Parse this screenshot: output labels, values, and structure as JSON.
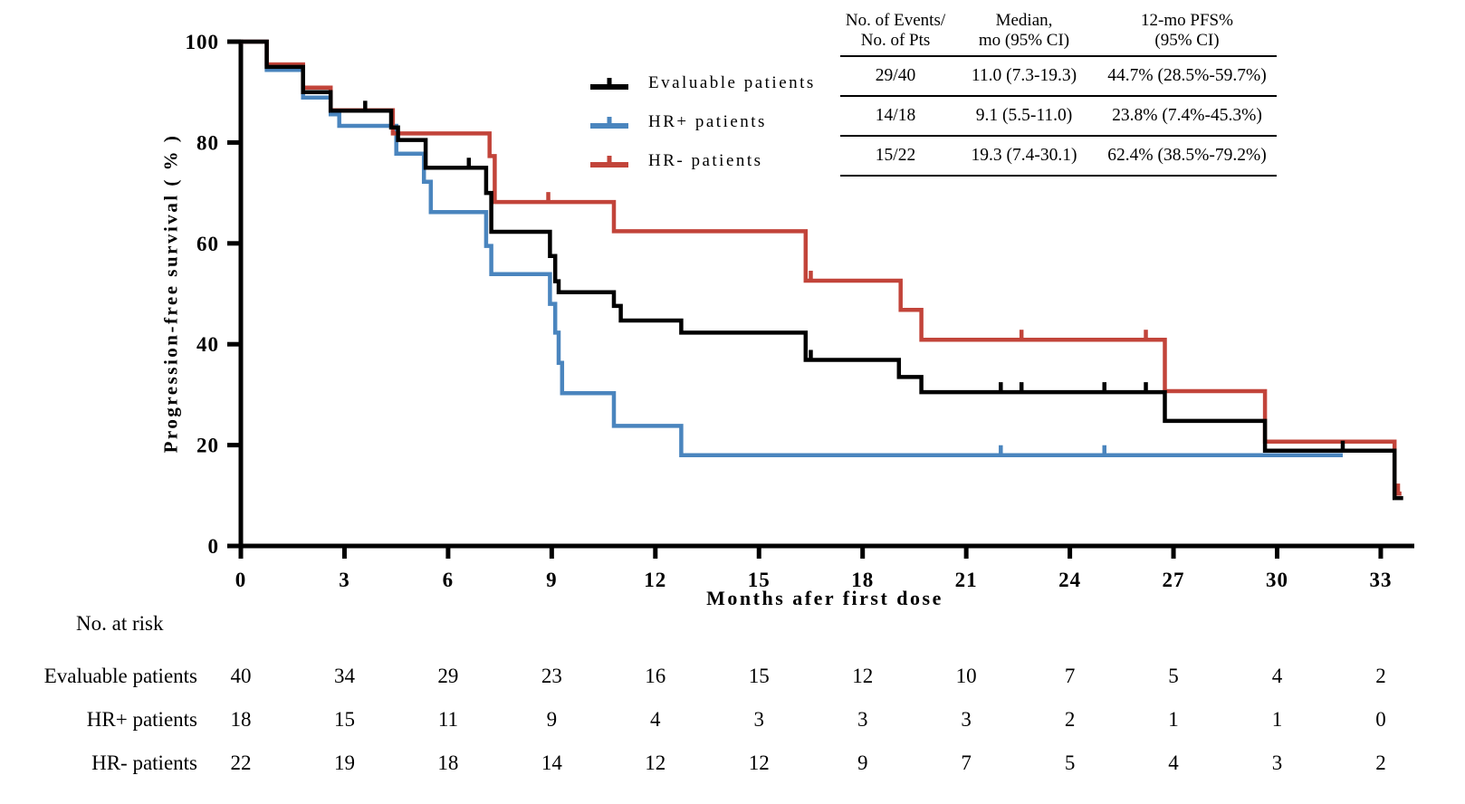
{
  "chart_data": {
    "type": "line",
    "subtype": "kaplan-meier-step",
    "title": "",
    "xlabel": "Months afer first dose",
    "ylabel": "Progression-free survival ( % )",
    "xlim": [
      0,
      34.5
    ],
    "ylim": [
      0,
      100
    ],
    "xticks": [
      0,
      3,
      6,
      9,
      12,
      15,
      18,
      21,
      24,
      27,
      30,
      33
    ],
    "yticks": [
      0,
      20,
      40,
      60,
      80,
      100
    ],
    "grid": false,
    "legend_position": "upper-center-left",
    "series": [
      {
        "name": "Evaluable patients",
        "color": "#000000",
        "steps": [
          [
            0,
            100
          ],
          [
            0.75,
            95
          ],
          [
            1.8,
            90
          ],
          [
            2.6,
            86.3
          ],
          [
            4.35,
            83
          ],
          [
            4.55,
            80.5
          ],
          [
            5.35,
            75
          ],
          [
            7.1,
            70
          ],
          [
            7.25,
            62.3
          ],
          [
            8.95,
            57.5
          ],
          [
            9.1,
            52.5
          ],
          [
            9.2,
            50.3
          ],
          [
            10.8,
            47.6
          ],
          [
            11.0,
            44.7
          ],
          [
            12.75,
            42.3
          ],
          [
            16.35,
            36.9
          ],
          [
            19.05,
            33.5
          ],
          [
            19.7,
            30.5
          ],
          [
            26.75,
            24.8
          ],
          [
            29.65,
            18.9
          ],
          [
            33.4,
            9.5
          ]
        ],
        "end": 33.65,
        "censors": [
          [
            3.6,
            86.3
          ],
          [
            6.6,
            75
          ],
          [
            16.5,
            36.9
          ],
          [
            22.0,
            30.5
          ],
          [
            22.6,
            30.5
          ],
          [
            25.0,
            30.5
          ],
          [
            26.2,
            30.5
          ],
          [
            31.9,
            18.9
          ]
        ]
      },
      {
        "name": "HR+ patients",
        "color": "#4A85BE",
        "steps": [
          [
            0,
            100
          ],
          [
            0.75,
            94.4
          ],
          [
            1.8,
            88.9
          ],
          [
            2.6,
            85.6
          ],
          [
            2.85,
            83.3
          ],
          [
            4.5,
            77.8
          ],
          [
            5.3,
            72.2
          ],
          [
            5.5,
            66.2
          ],
          [
            7.1,
            59.5
          ],
          [
            7.25,
            53.9
          ],
          [
            8.95,
            48
          ],
          [
            9.1,
            42.3
          ],
          [
            9.2,
            36.3
          ],
          [
            9.3,
            30.3
          ],
          [
            10.8,
            23.8
          ],
          [
            12.75,
            18
          ]
        ],
        "end": 31.9,
        "censors": [
          [
            22.0,
            18
          ],
          [
            25.0,
            18
          ]
        ]
      },
      {
        "name": "HR- patients",
        "color": "#C2443A",
        "steps": [
          [
            0,
            100
          ],
          [
            0.75,
            95.5
          ],
          [
            1.8,
            90.9
          ],
          [
            2.6,
            86.4
          ],
          [
            4.4,
            81.8
          ],
          [
            7.2,
            77.3
          ],
          [
            7.35,
            68.2
          ],
          [
            10.8,
            62.4
          ],
          [
            16.35,
            52.6
          ],
          [
            19.1,
            46.8
          ],
          [
            19.7,
            40.9
          ],
          [
            26.75,
            30.7
          ],
          [
            29.65,
            20.7
          ],
          [
            33.4,
            10.4
          ]
        ],
        "end": 33.6,
        "censors": [
          [
            8.9,
            68.2
          ],
          [
            16.5,
            52.6
          ],
          [
            22.6,
            40.9
          ],
          [
            26.2,
            40.9
          ],
          [
            33.5,
            10.4
          ]
        ]
      }
    ]
  },
  "legend": {
    "items": [
      {
        "label": "Evaluable patients"
      },
      {
        "label": "HR+ patients"
      },
      {
        "label": "HR- patients"
      }
    ]
  },
  "stats_table": {
    "col_headers": [
      {
        "line1": "No. of Events/",
        "line2": "No. of Pts"
      },
      {
        "line1": "Median,",
        "line2": "mo (95% CI)"
      },
      {
        "line1": "12-mo PFS%",
        "line2": "(95% CI)"
      }
    ],
    "rows": [
      {
        "events": "29/40",
        "median": "11.0 (7.3-19.3)",
        "pfs": "44.7% (28.5%-59.7%)"
      },
      {
        "events": "14/18",
        "median": "9.1 (5.5-11.0)",
        "pfs": "23.8% (7.4%-45.3%)"
      },
      {
        "events": "15/22",
        "median": "19.3 (7.4-30.1)",
        "pfs": "62.4% (38.5%-79.2%)"
      }
    ]
  },
  "risk_table": {
    "title": "No. at risk",
    "months": [
      0,
      3,
      6,
      9,
      12,
      15,
      18,
      21,
      24,
      27,
      30,
      33
    ],
    "rows": [
      {
        "label": "Evaluable patients",
        "values": [
          40,
          34,
          29,
          23,
          16,
          15,
          12,
          10,
          7,
          5,
          4,
          2
        ]
      },
      {
        "label": "HR+ patients",
        "values": [
          18,
          15,
          11,
          9,
          4,
          3,
          3,
          3,
          2,
          1,
          1,
          0
        ]
      },
      {
        "label": "HR- patients",
        "values": [
          22,
          19,
          18,
          14,
          12,
          12,
          9,
          7,
          5,
          4,
          3,
          2
        ]
      }
    ]
  }
}
